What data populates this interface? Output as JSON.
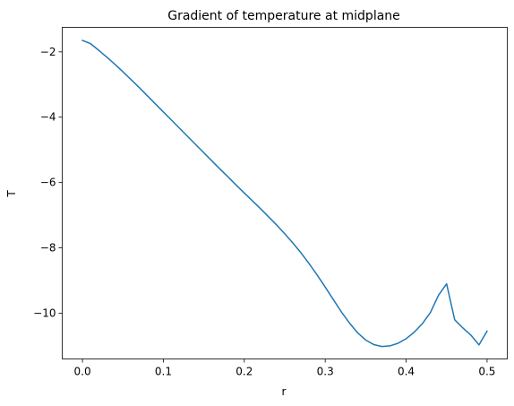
{
  "chart_data": {
    "type": "line",
    "title": "Gradient of temperature at midplane",
    "xlabel": "r",
    "ylabel": "T",
    "xlim": [
      -0.025,
      0.525
    ],
    "ylim": [
      -11.4,
      -1.25
    ],
    "xticks": [
      0.0,
      0.1,
      0.2,
      0.3,
      0.4,
      0.5
    ],
    "xtick_labels": [
      "0.0",
      "0.1",
      "0.2",
      "0.3",
      "0.4",
      "0.5"
    ],
    "yticks": [
      -2,
      -4,
      -6,
      -8,
      -10
    ],
    "ytick_labels": [
      "−2",
      "−4",
      "−6",
      "−8",
      "−10"
    ],
    "grid": false,
    "series": [
      {
        "color": "#1f77b4",
        "x": [
          0.0,
          0.01,
          0.02,
          0.03,
          0.04,
          0.05,
          0.06,
          0.07,
          0.08,
          0.09,
          0.1,
          0.11,
          0.12,
          0.13,
          0.14,
          0.15,
          0.16,
          0.17,
          0.18,
          0.19,
          0.2,
          0.21,
          0.22,
          0.23,
          0.24,
          0.25,
          0.26,
          0.27,
          0.28,
          0.29,
          0.3,
          0.31,
          0.32,
          0.33,
          0.34,
          0.35,
          0.36,
          0.37,
          0.38,
          0.39,
          0.4,
          0.41,
          0.42,
          0.43,
          0.44,
          0.45,
          0.46,
          0.47,
          0.48,
          0.49,
          0.5
        ],
        "y": [
          -1.65,
          -1.75,
          -1.95,
          -2.16,
          -2.38,
          -2.61,
          -2.85,
          -3.09,
          -3.34,
          -3.59,
          -3.84,
          -4.09,
          -4.34,
          -4.59,
          -4.84,
          -5.09,
          -5.34,
          -5.59,
          -5.83,
          -6.08,
          -6.32,
          -6.56,
          -6.8,
          -7.05,
          -7.3,
          -7.57,
          -7.85,
          -8.15,
          -8.48,
          -8.83,
          -9.2,
          -9.58,
          -9.96,
          -10.3,
          -10.6,
          -10.82,
          -10.96,
          -11.02,
          -11.0,
          -10.92,
          -10.78,
          -10.58,
          -10.32,
          -9.98,
          -9.45,
          -9.1,
          -10.2,
          -10.45,
          -10.67,
          -10.97,
          -10.55
        ]
      }
    ]
  }
}
